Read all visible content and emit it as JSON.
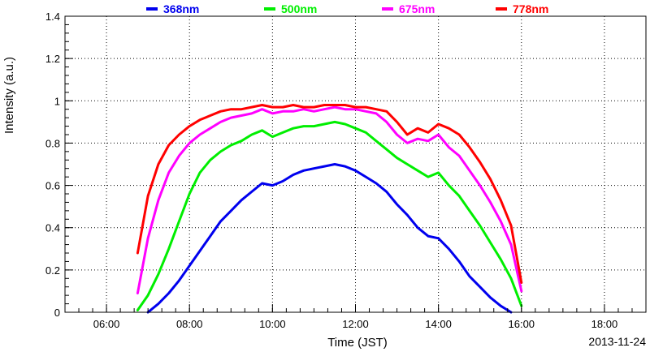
{
  "chart_data": {
    "type": "line",
    "xlabel": "Time (JST)",
    "ylabel": "Intensity (a.u.)",
    "date_label": "2013-11-24",
    "xlim": [
      5,
      19
    ],
    "ylim": [
      0,
      1.4
    ],
    "x_ticks": [
      {
        "value": 6,
        "label": "06:00"
      },
      {
        "value": 8,
        "label": "08:00"
      },
      {
        "value": 10,
        "label": "10:00"
      },
      {
        "value": 12,
        "label": "12:00"
      },
      {
        "value": 14,
        "label": "14:00"
      },
      {
        "value": 16,
        "label": "16:00"
      },
      {
        "value": 18,
        "label": "18:00"
      }
    ],
    "y_ticks": [
      {
        "value": 0,
        "label": "0"
      },
      {
        "value": 0.2,
        "label": "0.2"
      },
      {
        "value": 0.4,
        "label": "0.4"
      },
      {
        "value": 0.6,
        "label": "0.6"
      },
      {
        "value": 0.8,
        "label": "0.8"
      },
      {
        "value": 1,
        "label": "1"
      },
      {
        "value": 1.2,
        "label": "1.2"
      },
      {
        "value": 1.4,
        "label": "1.4"
      }
    ],
    "grid": true,
    "legend_position": "top",
    "series": [
      {
        "name": "368nm",
        "color": "#0000ee",
        "x": [
          7.0,
          7.25,
          7.5,
          7.75,
          8.0,
          8.25,
          8.5,
          8.75,
          9.0,
          9.25,
          9.5,
          9.75,
          10.0,
          10.25,
          10.5,
          10.75,
          11.0,
          11.25,
          11.5,
          11.75,
          12.0,
          12.25,
          12.5,
          12.75,
          13.0,
          13.25,
          13.5,
          13.75,
          14.0,
          14.25,
          14.5,
          14.75,
          15.0,
          15.25,
          15.5,
          15.75
        ],
        "y": [
          0.0,
          0.04,
          0.09,
          0.15,
          0.22,
          0.29,
          0.36,
          0.43,
          0.48,
          0.53,
          0.57,
          0.61,
          0.6,
          0.62,
          0.65,
          0.67,
          0.68,
          0.69,
          0.7,
          0.69,
          0.67,
          0.64,
          0.61,
          0.57,
          0.51,
          0.46,
          0.4,
          0.36,
          0.35,
          0.3,
          0.24,
          0.17,
          0.12,
          0.07,
          0.03,
          0.0
        ]
      },
      {
        "name": "500nm",
        "color": "#00ee00",
        "x": [
          6.75,
          7.0,
          7.25,
          7.5,
          7.75,
          8.0,
          8.25,
          8.5,
          8.75,
          9.0,
          9.25,
          9.5,
          9.75,
          10.0,
          10.25,
          10.5,
          10.75,
          11.0,
          11.25,
          11.5,
          11.75,
          12.0,
          12.25,
          12.5,
          12.75,
          13.0,
          13.25,
          13.5,
          13.75,
          14.0,
          14.25,
          14.5,
          14.75,
          15.0,
          15.25,
          15.5,
          15.75,
          16.0
        ],
        "y": [
          0.01,
          0.08,
          0.18,
          0.3,
          0.43,
          0.56,
          0.66,
          0.72,
          0.76,
          0.79,
          0.81,
          0.84,
          0.86,
          0.83,
          0.85,
          0.87,
          0.88,
          0.88,
          0.89,
          0.9,
          0.89,
          0.87,
          0.85,
          0.81,
          0.77,
          0.73,
          0.7,
          0.67,
          0.64,
          0.66,
          0.6,
          0.55,
          0.48,
          0.41,
          0.33,
          0.25,
          0.16,
          0.03
        ]
      },
      {
        "name": "675nm",
        "color": "#ff00ff",
        "x": [
          6.75,
          7.0,
          7.25,
          7.5,
          7.75,
          8.0,
          8.25,
          8.5,
          8.75,
          9.0,
          9.25,
          9.5,
          9.75,
          10.0,
          10.25,
          10.5,
          10.75,
          11.0,
          11.25,
          11.5,
          11.75,
          12.0,
          12.25,
          12.5,
          12.75,
          13.0,
          13.25,
          13.5,
          13.75,
          14.0,
          14.25,
          14.5,
          14.75,
          15.0,
          15.25,
          15.5,
          15.75,
          16.0
        ],
        "y": [
          0.09,
          0.35,
          0.53,
          0.66,
          0.74,
          0.8,
          0.84,
          0.87,
          0.9,
          0.92,
          0.93,
          0.94,
          0.96,
          0.94,
          0.95,
          0.95,
          0.96,
          0.95,
          0.96,
          0.97,
          0.96,
          0.96,
          0.95,
          0.94,
          0.9,
          0.84,
          0.8,
          0.82,
          0.81,
          0.84,
          0.78,
          0.74,
          0.67,
          0.6,
          0.52,
          0.43,
          0.32,
          0.1
        ]
      },
      {
        "name": "778nm",
        "color": "#ff0000",
        "x": [
          6.75,
          7.0,
          7.25,
          7.5,
          7.75,
          8.0,
          8.25,
          8.5,
          8.75,
          9.0,
          9.25,
          9.5,
          9.75,
          10.0,
          10.25,
          10.5,
          10.75,
          11.0,
          11.25,
          11.5,
          11.75,
          12.0,
          12.25,
          12.5,
          12.75,
          13.0,
          13.25,
          13.5,
          13.75,
          14.0,
          14.25,
          14.5,
          14.75,
          15.0,
          15.25,
          15.5,
          15.75,
          16.0
        ],
        "y": [
          0.28,
          0.55,
          0.7,
          0.79,
          0.84,
          0.88,
          0.91,
          0.93,
          0.95,
          0.96,
          0.96,
          0.97,
          0.98,
          0.97,
          0.97,
          0.98,
          0.97,
          0.97,
          0.98,
          0.98,
          0.98,
          0.97,
          0.97,
          0.96,
          0.95,
          0.9,
          0.84,
          0.87,
          0.85,
          0.89,
          0.87,
          0.84,
          0.78,
          0.71,
          0.63,
          0.53,
          0.41,
          0.14
        ]
      }
    ]
  }
}
